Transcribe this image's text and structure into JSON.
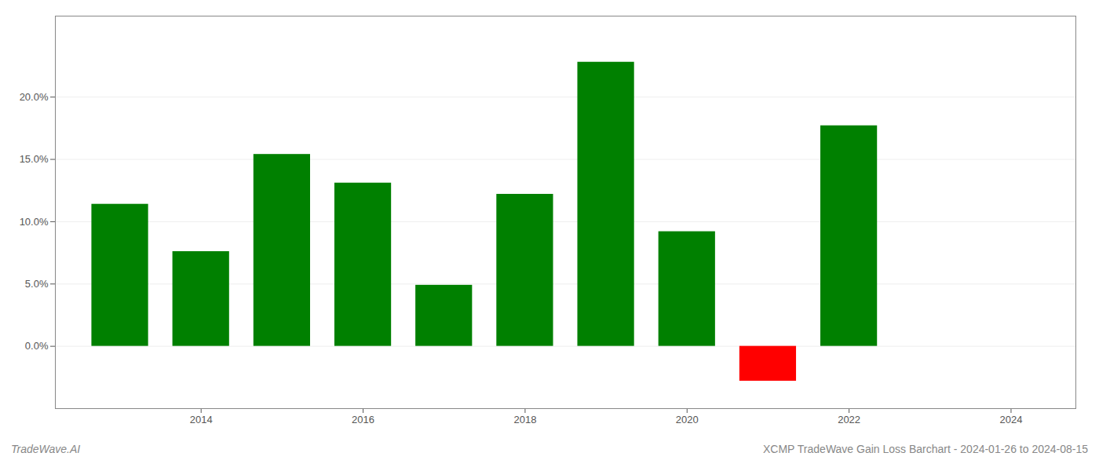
{
  "chart_data": {
    "type": "bar",
    "title": "XCMP TradeWave Gain Loss Barchart - 2024-01-26 to 2024-08-15",
    "annotations": [
      "TradeWave.AI"
    ],
    "x": [
      2013,
      2014,
      2015,
      2016,
      2017,
      2018,
      2019,
      2020,
      2021,
      2022,
      2023
    ],
    "values": [
      0.114,
      0.076,
      0.154,
      0.131,
      0.049,
      0.122,
      0.228,
      0.092,
      -0.028,
      0.177,
      0.0
    ],
    "colors": [
      "#008000",
      "#008000",
      "#008000",
      "#008000",
      "#008000",
      "#008000",
      "#008000",
      "#008000",
      "#ff0000",
      "#008000",
      "#008000"
    ],
    "xlim": [
      2012.2,
      2024.8
    ],
    "xticks": [
      2014,
      2016,
      2018,
      2020,
      2022,
      2024
    ],
    "ylim": [
      -0.05,
      0.265
    ],
    "yticks": [
      {
        "value": 0.0,
        "label": "0.0%"
      },
      {
        "value": 0.05,
        "label": "5.0%"
      },
      {
        "value": 0.1,
        "label": "10.0%"
      },
      {
        "value": 0.15,
        "label": "15.0%"
      },
      {
        "value": 0.2,
        "label": "20.0%"
      }
    ],
    "grid": true
  }
}
